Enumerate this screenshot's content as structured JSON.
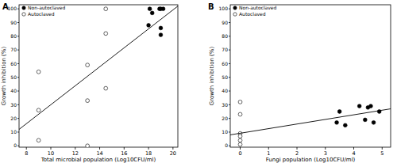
{
  "chart_data": [
    {
      "type": "scatter",
      "title": "A",
      "x_label": "Total microbial population (Log10CFU/ml)",
      "y_label": "Growth inhibition (%)",
      "xlim": [
        7.4,
        20.4
      ],
      "ylim": [
        -1,
        103
      ],
      "xticks": [
        8,
        10,
        12,
        14,
        16,
        18,
        20
      ],
      "yticks": [
        0,
        10,
        20,
        30,
        40,
        50,
        60,
        70,
        80,
        90,
        100
      ],
      "legend": "top-left",
      "series": [
        {
          "name": "Non-autoclaved",
          "color": "#000000",
          "marker": "filled-circle",
          "x": [
            18.0,
            18.1,
            18.3,
            18.9,
            19.0,
            19.2,
            19.0,
            19.0
          ],
          "values": [
            88,
            100,
            97,
            100,
            100,
            100,
            86,
            81
          ]
        },
        {
          "name": "Autoclaved",
          "color": "#000000",
          "marker": "open-circle",
          "x": [
            9,
            9,
            9,
            13,
            13,
            13,
            14.5,
            14.5,
            14.5
          ],
          "values": [
            54,
            26,
            4,
            59,
            33,
            0,
            100,
            82,
            42
          ]
        },
        {
          "type": "line",
          "color": "#000000",
          "x": [
            7.4,
            20.4
          ],
          "values": [
            12,
            102
          ]
        }
      ]
    },
    {
      "type": "scatter",
      "title": "B",
      "x_label": "Fungi population (Log10CFU/ml)",
      "y_label": "Growth inhibition (%)",
      "xlim": [
        -0.35,
        5.3
      ],
      "ylim": [
        -1,
        103
      ],
      "xticks": [
        0,
        1,
        2,
        3,
        4,
        5
      ],
      "yticks": [
        0,
        10,
        20,
        30,
        40,
        50,
        60,
        70,
        80,
        90,
        100
      ],
      "legend": "top-left",
      "series": [
        {
          "name": "Non-autoclaved",
          "color": "#000000",
          "marker": "filled-circle",
          "x": [
            3.4,
            3.5,
            3.7,
            4.2,
            4.4,
            4.5,
            4.6,
            4.7,
            4.9
          ],
          "values": [
            17,
            25,
            15,
            29,
            19,
            28,
            29,
            17,
            25
          ]
        },
        {
          "name": "Autoclaved",
          "color": "#000000",
          "marker": "open-circle",
          "x": [
            0,
            0,
            0,
            0,
            0,
            0
          ],
          "values": [
            32,
            23,
            9,
            7,
            4,
            1
          ]
        },
        {
          "type": "line",
          "color": "#000000",
          "x": [
            -0.35,
            5.3
          ],
          "values": [
            8,
            27
          ]
        }
      ]
    }
  ]
}
